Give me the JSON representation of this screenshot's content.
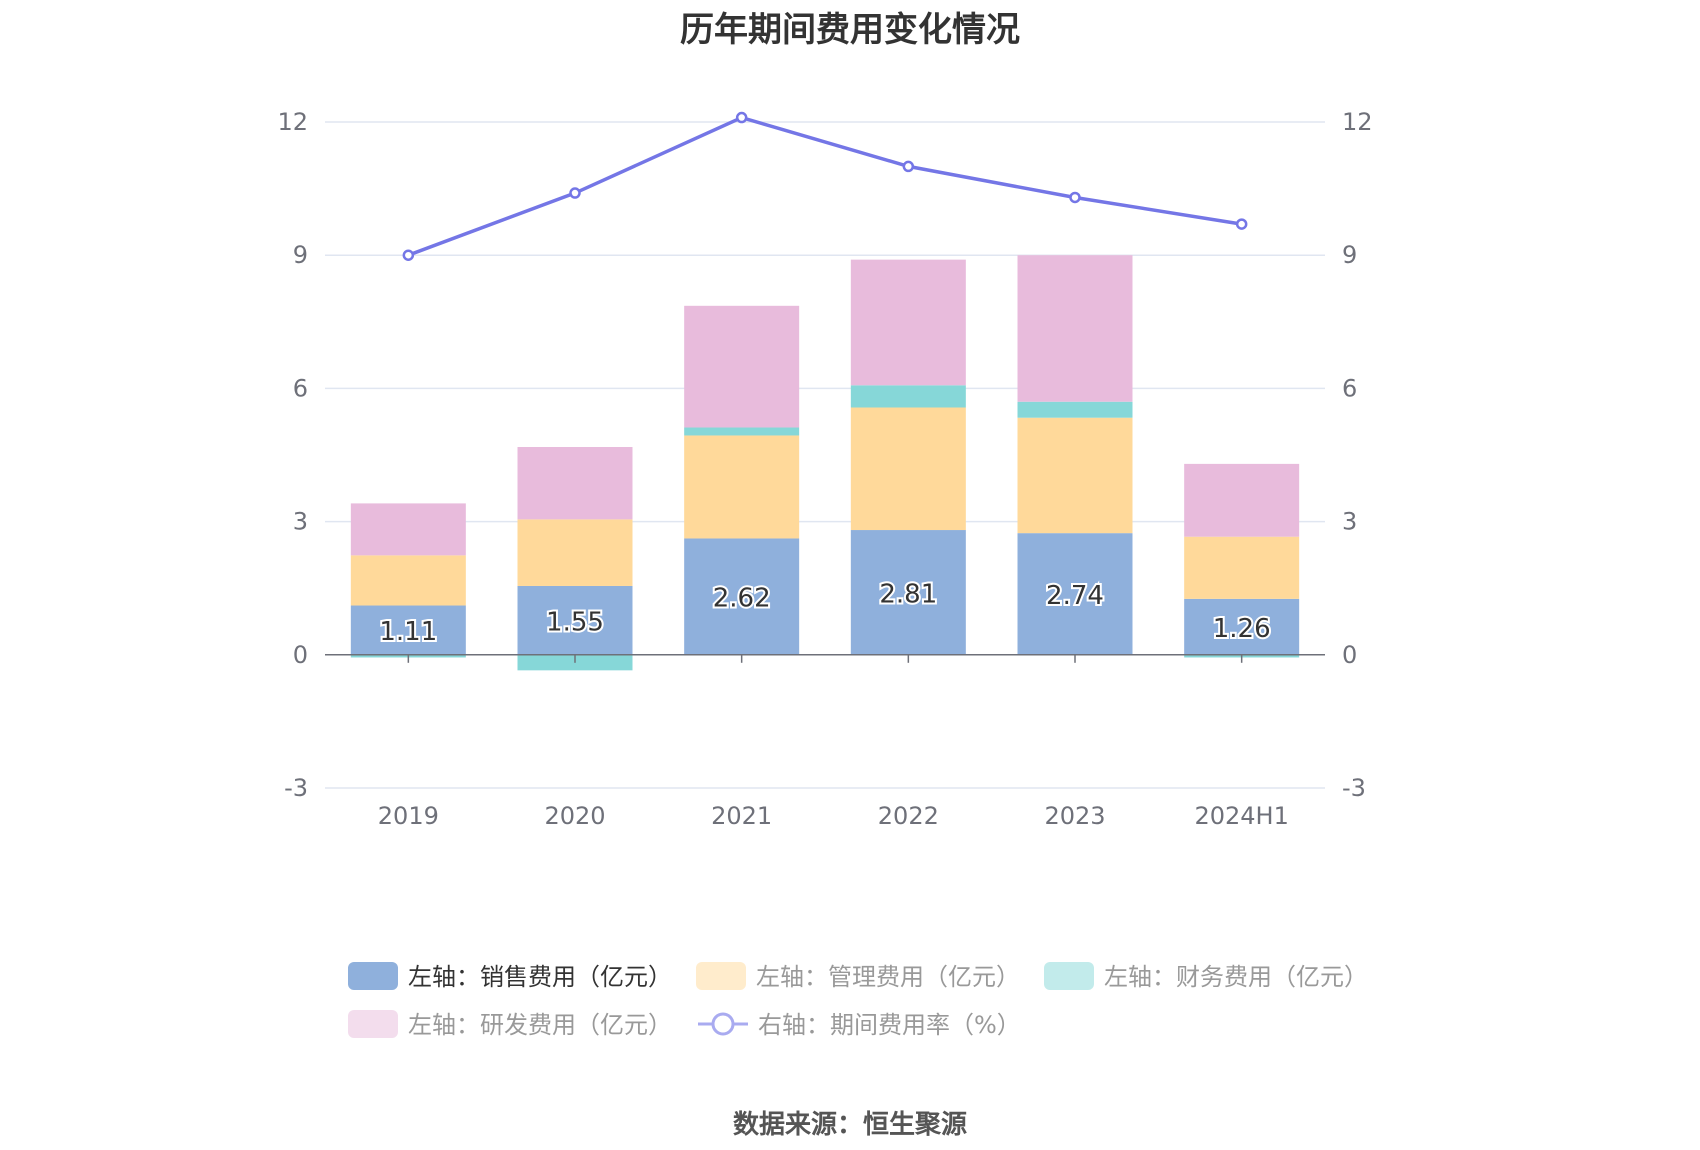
{
  "chart_data": {
    "type": "bar",
    "title": "历年期间费用变化情况",
    "source": "数据来源：恒生聚源",
    "categories": [
      "2019",
      "2020",
      "2021",
      "2022",
      "2023",
      "2024H1"
    ],
    "left_axis": {
      "ylim": [
        -3,
        12
      ],
      "ticks": [
        -3,
        0,
        3,
        6,
        9,
        12
      ]
    },
    "right_axis": {
      "ylim": [
        -3,
        12
      ],
      "ticks": [
        -3,
        0,
        3,
        6,
        9,
        12
      ]
    },
    "grid": true,
    "legend_position": "bottom",
    "series": [
      {
        "name": "左轴：销售费用（亿元）",
        "type": "bar",
        "stack": "total",
        "axis": "left",
        "color": "#8fb0dc",
        "values": [
          1.11,
          1.55,
          2.62,
          2.81,
          2.74,
          1.26
        ],
        "show_labels": true
      },
      {
        "name": "左轴：管理费用（亿元）",
        "type": "bar",
        "stack": "total",
        "axis": "left",
        "color": "#ffd99a",
        "values": [
          1.13,
          1.5,
          2.32,
          2.76,
          2.6,
          1.4
        ]
      },
      {
        "name": "左轴：财务费用（亿元）",
        "type": "bar",
        "stack": "total",
        "axis": "left",
        "color": "#86d7d8",
        "values": [
          -0.06,
          -0.35,
          0.18,
          0.5,
          0.36,
          -0.06
        ]
      },
      {
        "name": "左轴：研发费用（亿元）",
        "type": "bar",
        "stack": "total",
        "axis": "left",
        "color": "#e8bbdc",
        "values": [
          1.17,
          1.63,
          2.74,
          2.83,
          3.3,
          1.64
        ]
      },
      {
        "name": "右轴：期间费用率（%）",
        "type": "line",
        "axis": "right",
        "color": "#7476e6",
        "values": [
          9.0,
          10.4,
          12.1,
          11.0,
          10.3,
          9.7
        ]
      }
    ]
  }
}
